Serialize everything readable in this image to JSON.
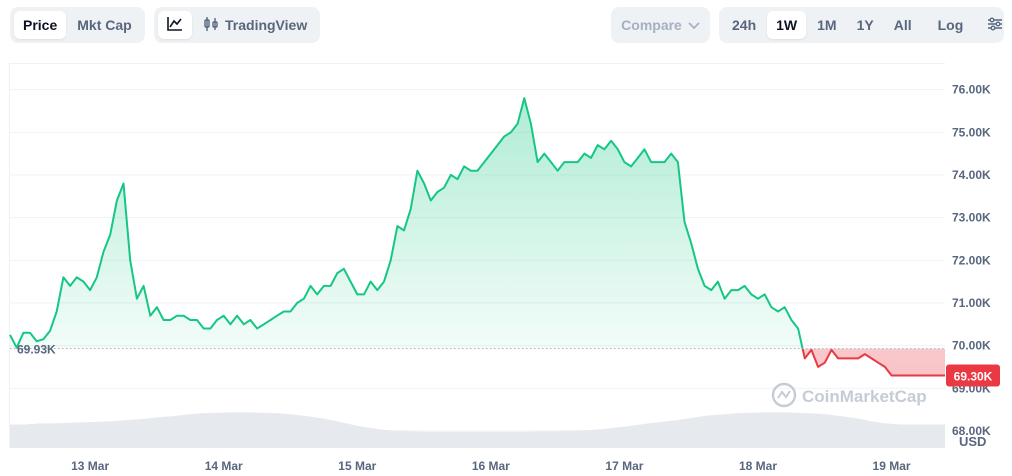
{
  "toolbar": {
    "price_label": "Price",
    "mktcap_label": "Mkt Cap",
    "tradingview_label": "TradingView",
    "compare_label": "Compare",
    "ranges": [
      "24h",
      "1W",
      "1M",
      "1Y",
      "All"
    ],
    "active_range": "1W",
    "log_label": "Log"
  },
  "colors": {
    "up": "#16c784",
    "down": "#ea3943",
    "grid": "#eff2f5",
    "axis_text": "#58667e"
  },
  "watermark": "CoinMarketCap",
  "chart_data": {
    "type": "area",
    "xlabel": "",
    "ylabel": "USD",
    "ylim": [
      67.6,
      76.6
    ],
    "y_ticks": [
      {
        "value": 68,
        "label": "68.00K"
      },
      {
        "value": 69,
        "label": "69.00K"
      },
      {
        "value": 70,
        "label": "70.00K"
      },
      {
        "value": 71,
        "label": "71.00K"
      },
      {
        "value": 72,
        "label": "72.00K"
      },
      {
        "value": 73,
        "label": "73.00K"
      },
      {
        "value": 74,
        "label": "74.00K"
      },
      {
        "value": 75,
        "label": "75.00K"
      },
      {
        "value": 76,
        "label": "76.00K"
      }
    ],
    "x_ticks": [
      "13 Mar",
      "14 Mar",
      "15 Mar",
      "16 Mar",
      "17 Mar",
      "18 Mar",
      "19 Mar"
    ],
    "x_tick_positions_days": [
      0.6,
      1.6,
      2.6,
      3.6,
      4.6,
      5.6,
      6.6
    ],
    "reference_price": 69.93,
    "reference_label": "69.93K",
    "current_price": 69.3,
    "current_label": "69.30K",
    "grid": true,
    "series": [
      {
        "x_days": [
          0.0,
          0.05,
          0.1,
          0.15,
          0.2,
          0.25,
          0.3,
          0.35,
          0.4,
          0.45,
          0.5,
          0.55,
          0.6,
          0.65,
          0.7,
          0.75,
          0.8,
          0.85,
          0.9,
          0.95,
          1.0,
          1.05,
          1.1,
          1.15,
          1.2,
          1.25,
          1.3,
          1.35,
          1.4,
          1.45,
          1.5,
          1.55,
          1.6,
          1.65,
          1.7,
          1.75,
          1.8,
          1.85,
          1.9,
          1.95,
          2.0,
          2.05,
          2.1,
          2.15,
          2.2,
          2.25,
          2.3,
          2.35,
          2.4,
          2.45,
          2.5,
          2.55,
          2.6,
          2.65,
          2.7,
          2.75,
          2.8,
          2.85,
          2.9,
          2.95,
          3.0,
          3.05,
          3.1,
          3.15,
          3.2,
          3.25,
          3.3,
          3.35,
          3.4,
          3.45,
          3.5,
          3.55,
          3.6,
          3.65,
          3.7,
          3.75,
          3.8,
          3.85,
          3.9,
          3.95,
          4.0,
          4.05,
          4.1,
          4.15,
          4.2,
          4.25,
          4.3,
          4.35,
          4.4,
          4.45,
          4.5,
          4.55,
          4.6,
          4.65,
          4.7,
          4.75,
          4.8,
          4.85,
          4.9,
          4.95,
          5.0,
          5.05,
          5.1,
          5.15,
          5.2,
          5.25,
          5.3,
          5.35,
          5.4,
          5.45,
          5.5,
          5.55,
          5.6,
          5.65,
          5.7,
          5.75,
          5.8,
          5.85,
          5.9,
          5.95,
          6.0,
          6.05,
          6.1,
          6.15,
          6.2,
          6.25,
          6.3,
          6.35,
          6.4,
          6.45,
          6.5,
          6.55,
          6.6,
          6.65,
          6.7,
          6.75,
          6.8,
          6.85,
          6.9,
          6.95,
          7.0
        ],
        "values": [
          70.25,
          69.95,
          70.3,
          70.3,
          70.1,
          70.15,
          70.35,
          70.8,
          71.6,
          71.4,
          71.6,
          71.5,
          71.3,
          71.6,
          72.2,
          72.6,
          73.4,
          73.8,
          72.0,
          71.1,
          71.4,
          70.7,
          70.9,
          70.6,
          70.6,
          70.7,
          70.7,
          70.6,
          70.6,
          70.4,
          70.4,
          70.6,
          70.7,
          70.5,
          70.7,
          70.5,
          70.6,
          70.4,
          70.5,
          70.6,
          70.7,
          70.8,
          70.8,
          71.0,
          71.1,
          71.4,
          71.2,
          71.4,
          71.4,
          71.7,
          71.8,
          71.5,
          71.2,
          71.2,
          71.5,
          71.3,
          71.5,
          72.0,
          72.8,
          72.7,
          73.2,
          74.1,
          73.8,
          73.4,
          73.6,
          73.7,
          74.0,
          73.9,
          74.2,
          74.1,
          74.1,
          74.3,
          74.5,
          74.7,
          74.9,
          75.0,
          75.2,
          75.8,
          75.2,
          74.3,
          74.5,
          74.3,
          74.1,
          74.3,
          74.3,
          74.3,
          74.5,
          74.4,
          74.7,
          74.6,
          74.8,
          74.6,
          74.3,
          74.2,
          74.4,
          74.6,
          74.3,
          74.3,
          74.3,
          74.5,
          74.3,
          72.9,
          72.4,
          71.8,
          71.4,
          71.3,
          71.5,
          71.1,
          71.3,
          71.3,
          71.4,
          71.2,
          71.1,
          71.2,
          70.9,
          70.8,
          70.9,
          70.6,
          70.4,
          69.7,
          69.9,
          69.5,
          69.6,
          69.9,
          69.7,
          69.7,
          69.7,
          69.7,
          69.8,
          69.7,
          69.6,
          69.5,
          69.3,
          69.3,
          69.3,
          69.3,
          69.3,
          69.3,
          69.3,
          69.3,
          69.3
        ]
      }
    ],
    "volume_relative": [
      0.42,
      0.42,
      0.44,
      0.44,
      0.45,
      0.46,
      0.47,
      0.48,
      0.5,
      0.52,
      0.55,
      0.57,
      0.6,
      0.62,
      0.63,
      0.64,
      0.64,
      0.63,
      0.62,
      0.6,
      0.57,
      0.53,
      0.48,
      0.42,
      0.37,
      0.33,
      0.31,
      0.3,
      0.29,
      0.29,
      0.29,
      0.29,
      0.29,
      0.29,
      0.29,
      0.29,
      0.3,
      0.3,
      0.31,
      0.32,
      0.34,
      0.37,
      0.4,
      0.44,
      0.47,
      0.5,
      0.54,
      0.58,
      0.6,
      0.62,
      0.63,
      0.64,
      0.64,
      0.63,
      0.62,
      0.6,
      0.57,
      0.53,
      0.48,
      0.44,
      0.42,
      0.42,
      0.42,
      0.42
    ]
  }
}
